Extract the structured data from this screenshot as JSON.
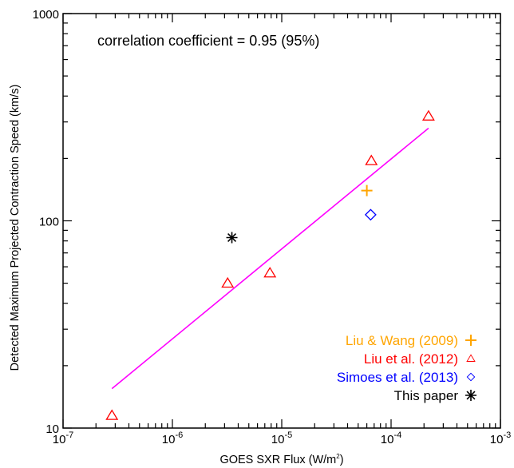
{
  "chart_data": {
    "type": "scatter",
    "xlabel": "GOES SXR Flux (W/m",
    "xlabel_sup": "2",
    "xlabel_end": ")",
    "ylabel": "Detected Maximum Projected Contraction Speed (km/s)",
    "xscale": "log",
    "yscale": "log",
    "xlim": [
      1e-07,
      0.001
    ],
    "ylim": [
      10,
      1000
    ],
    "x_ticks": [
      {
        "value": 1e-07,
        "base": "10",
        "exp": "-7"
      },
      {
        "value": 1e-06,
        "base": "10",
        "exp": "-6"
      },
      {
        "value": 1e-05,
        "base": "10",
        "exp": "-5"
      },
      {
        "value": 0.0001,
        "base": "10",
        "exp": "-4"
      },
      {
        "value": 0.001,
        "base": "10",
        "exp": "-3"
      }
    ],
    "y_ticks": [
      {
        "value": 10,
        "label": "10"
      },
      {
        "value": 100,
        "label": "100"
      },
      {
        "value": 1000,
        "label": "1000"
      }
    ],
    "annotation": "correlation coefficient = 0.95 (95%)",
    "fit_line": {
      "color": "#ff00ff",
      "points": [
        [
          2.8e-07,
          15.5
        ],
        [
          0.00022,
          280
        ]
      ]
    },
    "series": [
      {
        "name": "Liu & Wang (2009)",
        "marker": "plus",
        "color": "#ffa500",
        "points": [
          [
            6e-05,
            140
          ]
        ]
      },
      {
        "name": "Liu et al. (2012)",
        "marker": "triangle",
        "color": "#ff0000",
        "points": [
          [
            2.8e-07,
            11.5
          ],
          [
            3.2e-06,
            50
          ],
          [
            7.8e-06,
            56
          ],
          [
            6.6e-05,
            195
          ],
          [
            0.00022,
            320
          ]
        ]
      },
      {
        "name": "Simoes et al. (2013)",
        "marker": "diamond",
        "color": "#0000ff",
        "points": [
          [
            6.5e-05,
            107
          ]
        ]
      },
      {
        "name": "This paper",
        "marker": "asterisk",
        "color": "#000000",
        "points": [
          [
            3.5e-06,
            83
          ]
        ]
      }
    ],
    "legend_position": "bottom-right",
    "grid": false
  }
}
